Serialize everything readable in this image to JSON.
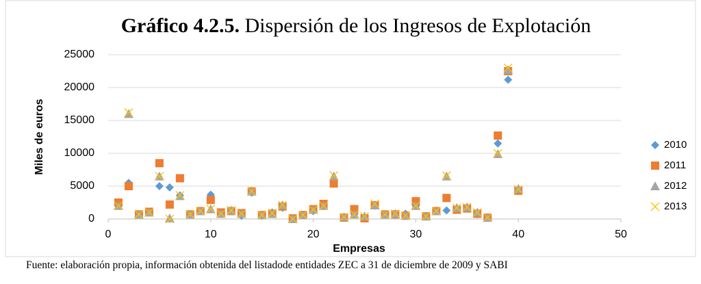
{
  "chart_data": {
    "type": "scatter",
    "title_label": "Gráfico 4.2.5.",
    "title": "Dispersión de los Ingresos de Explotación",
    "x_label": "Empresas",
    "y_label": "Miles de euros",
    "source": "Fuente: elaboración propia, información obtenida del listadode entidades ZEC a 31 de diciembre de 2009 y SABI",
    "x": [
      1,
      2,
      3,
      4,
      5,
      6,
      7,
      8,
      9,
      10,
      11,
      12,
      13,
      14,
      15,
      16,
      17,
      18,
      19,
      20,
      21,
      22,
      23,
      24,
      25,
      26,
      27,
      28,
      29,
      30,
      31,
      32,
      33,
      34,
      35,
      36,
      37,
      38,
      39,
      40
    ],
    "series": [
      {
        "name": "2010",
        "color": "#5b9bd5",
        "marker": "diamond",
        "values": [
          2000,
          5500,
          700,
          1000,
          5000,
          4800,
          3600,
          700,
          1200,
          3700,
          900,
          1200,
          500,
          4000,
          500,
          1000,
          1700,
          100,
          600,
          1200,
          2000,
          5500,
          200,
          700,
          200,
          2000,
          700,
          600,
          800,
          2000,
          400,
          1200,
          1300,
          1500,
          1600,
          700,
          200,
          11500,
          21200,
          4500
        ]
      },
      {
        "name": "2011",
        "color": "#ed7d31",
        "marker": "square",
        "values": [
          2500,
          5000,
          700,
          1100,
          8500,
          2200,
          6200,
          700,
          1200,
          2900,
          1000,
          1200,
          900,
          4200,
          600,
          800,
          1900,
          100,
          600,
          1500,
          2300,
          5400,
          200,
          1500,
          100,
          2100,
          700,
          700,
          500,
          2700,
          400,
          1200,
          3200,
          1400,
          1600,
          800,
          200,
          12700,
          22500,
          4300
        ]
      },
      {
        "name": "2012",
        "color": "#a5a5a5",
        "marker": "triangle",
        "values": [
          2000,
          16000,
          700,
          1000,
          6500,
          100,
          3500,
          700,
          1200,
          1500,
          800,
          1300,
          800,
          4200,
          600,
          800,
          2100,
          0,
          600,
          1400,
          2000,
          6500,
          300,
          700,
          400,
          2100,
          700,
          800,
          500,
          2000,
          400,
          1200,
          6500,
          1700,
          1800,
          1000,
          200,
          9900,
          22700,
          4600
        ]
      },
      {
        "name": "2013",
        "color": "#ffc000",
        "marker": "x",
        "values": [
          2000,
          16200,
          700,
          1000,
          6500,
          0,
          3600,
          700,
          1200,
          1500,
          800,
          1300,
          800,
          4200,
          600,
          900,
          2100,
          0,
          600,
          1400,
          2000,
          6600,
          300,
          700,
          400,
          2300,
          700,
          800,
          500,
          2000,
          400,
          1200,
          6600,
          1700,
          1800,
          1000,
          200,
          10000,
          23000,
          4500
        ]
      }
    ],
    "xlim": [
      0,
      50
    ],
    "xticks": [
      0,
      10,
      20,
      30,
      40,
      50
    ],
    "ylim": [
      0,
      25000
    ],
    "yticks": [
      0,
      5000,
      10000,
      15000,
      20000,
      25000
    ],
    "grid": true,
    "legend": "right"
  }
}
